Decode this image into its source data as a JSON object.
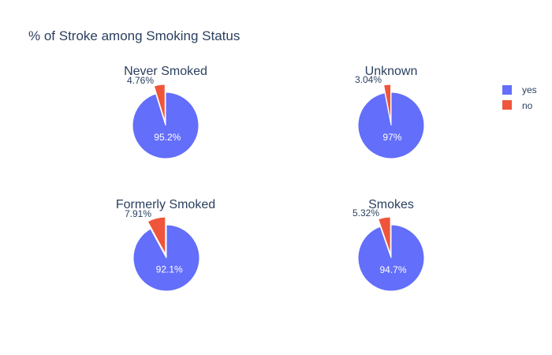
{
  "chart_data": {
    "type": "pie",
    "title": "% of Stroke among Smoking Status",
    "legend_position": "top-right",
    "series_names": [
      "yes",
      "no"
    ],
    "colors": {
      "yes": "#636efa",
      "no": "#ef553b"
    },
    "subplots": [
      {
        "title": "Never Smoked",
        "values": {
          "yes": 95.2,
          "no": 4.76
        },
        "labels": {
          "yes": "95.2%",
          "no": "4.76%"
        }
      },
      {
        "title": "Unknown",
        "values": {
          "yes": 97,
          "no": 3.04
        },
        "labels": {
          "yes": "97%",
          "no": "3.04%"
        }
      },
      {
        "title": "Formerly Smoked",
        "values": {
          "yes": 92.1,
          "no": 7.91
        },
        "labels": {
          "yes": "92.1%",
          "no": "7.91%"
        }
      },
      {
        "title": "Smokes",
        "values": {
          "yes": 94.7,
          "no": 5.32
        },
        "labels": {
          "yes": "94.7%",
          "no": "5.32%"
        }
      }
    ]
  }
}
